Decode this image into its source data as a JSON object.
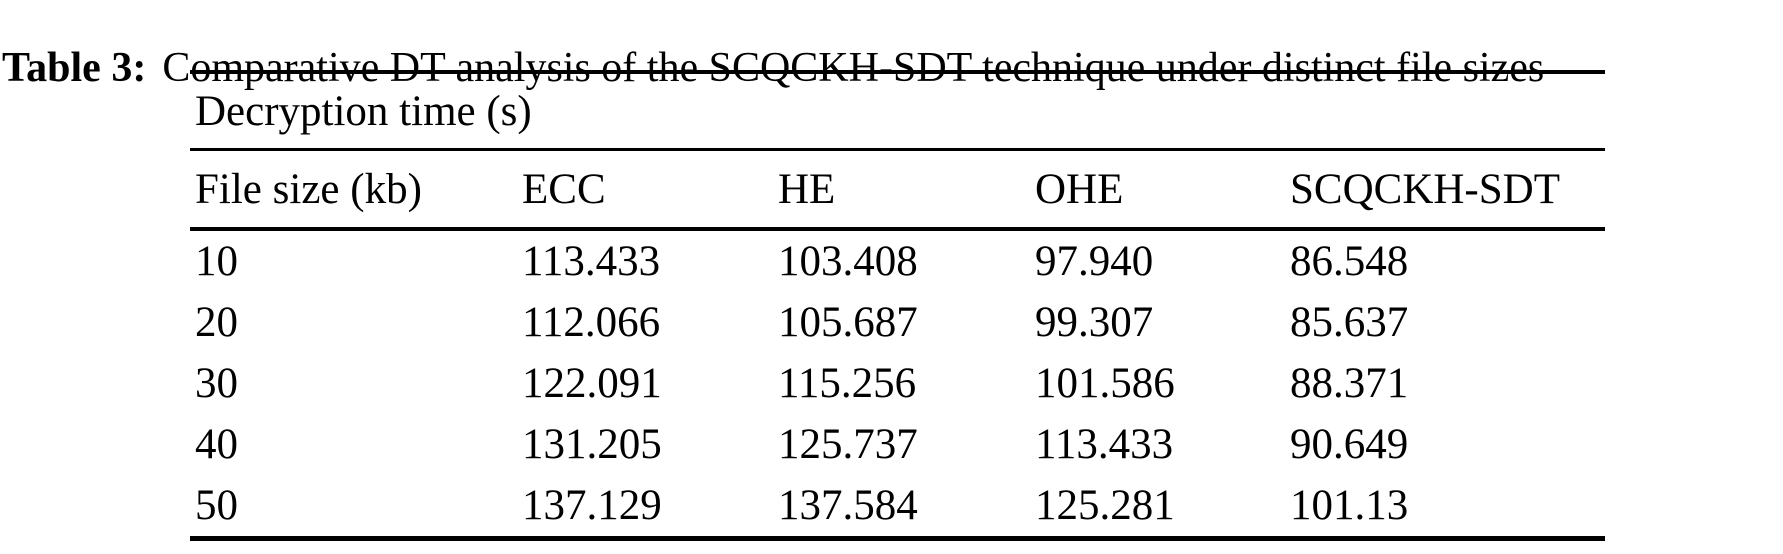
{
  "page": {
    "background_color": "#ffffff",
    "text_color": "#000000"
  },
  "caption": {
    "label": "Table 3:",
    "text": "Comparative DT analysis of the SCQCKH-SDT technique under distinct file sizes"
  },
  "table": {
    "spanning_header": "Decryption time (s)",
    "columns": [
      "File size (kb)",
      "ECC",
      "HE",
      "OHE",
      "SCQCKH-SDT"
    ],
    "rows": [
      [
        "10",
        "113.433",
        "103.408",
        "97.940",
        "86.548"
      ],
      [
        "20",
        "112.066",
        "105.687",
        "99.307",
        "85.637"
      ],
      [
        "30",
        "122.091",
        "115.256",
        "101.586",
        "88.371"
      ],
      [
        "40",
        "131.205",
        "125.737",
        "113.433",
        "90.649"
      ],
      [
        "50",
        "137.129",
        "137.584",
        "125.281",
        "101.13"
      ]
    ]
  },
  "chart_data": {
    "type": "table",
    "title": "Table 3: Comparative DT analysis of the SCQCKH-SDT technique under distinct file sizes",
    "section_header": "Decryption time (s)",
    "xlabel": "File size (kb)",
    "ylabel": "Decryption time (s)",
    "categories": [
      10,
      20,
      30,
      40,
      50
    ],
    "series": [
      {
        "name": "ECC",
        "values": [
          113.433,
          112.066,
          122.091,
          131.205,
          137.129
        ]
      },
      {
        "name": "HE",
        "values": [
          103.408,
          105.687,
          115.256,
          125.737,
          137.584
        ]
      },
      {
        "name": "OHE",
        "values": [
          97.94,
          99.307,
          101.586,
          113.433,
          125.281
        ]
      },
      {
        "name": "SCQCKH-SDT",
        "values": [
          86.548,
          85.637,
          88.371,
          90.649,
          101.13
        ]
      }
    ]
  }
}
